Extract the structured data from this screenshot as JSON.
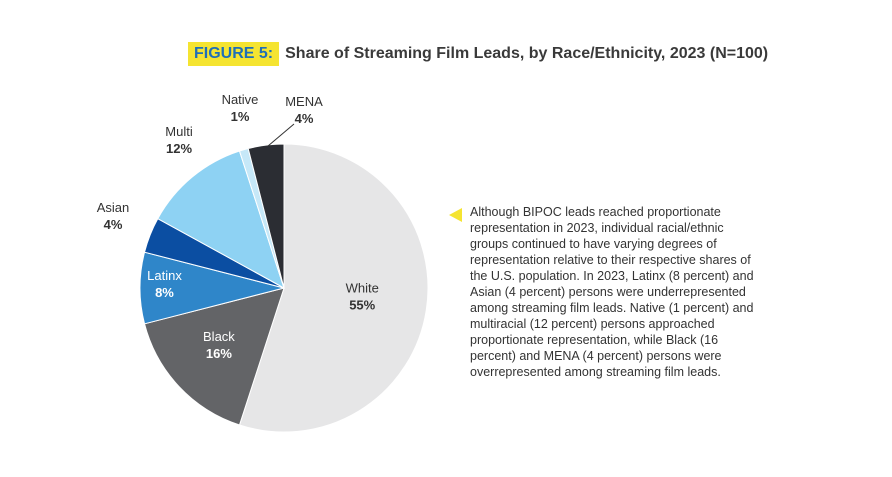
{
  "header": {
    "figure_tag": "FIGURE 5:",
    "title": "Share of Streaming Film Leads, by Race/Ethnicity, 2023 (N=100)"
  },
  "colors": {
    "accent_yellow": "#f5e431",
    "accent_blue": "#1f6fb8"
  },
  "chart_data": {
    "type": "pie",
    "title": "Share of Streaming Film Leads, by Race/Ethnicity, 2023 (N=100)",
    "slices": [
      {
        "label": "White",
        "value": 55,
        "display": "55%",
        "color": "#e6e6e7",
        "text_color": "#333333"
      },
      {
        "label": "Black",
        "value": 16,
        "display": "16%",
        "color": "#636467",
        "text_color": "#ffffff"
      },
      {
        "label": "Latinx",
        "value": 8,
        "display": "8%",
        "color": "#2f86c9",
        "text_color": "#ffffff"
      },
      {
        "label": "Asian",
        "value": 4,
        "display": "4%",
        "color": "#0b4ea2",
        "text_color": "#333333"
      },
      {
        "label": "Multi",
        "value": 12,
        "display": "12%",
        "color": "#8ed2f3",
        "text_color": "#333333"
      },
      {
        "label": "Native",
        "value": 1,
        "display": "1%",
        "color": "#c6e8f8",
        "text_color": "#333333"
      },
      {
        "label": "MENA",
        "value": 4,
        "display": "4%",
        "color": "#2b2d33",
        "text_color": "#333333"
      }
    ]
  },
  "note": {
    "text": "Although BIPOC leads reached proportionate representation in 2023, individual racial/ethnic groups continued to have varying degrees of representation relative to their respective shares of the U.S. population. In 2023, Latinx (8 percent) and Asian (4 percent) persons were underrepresented among streaming film leads. Native (1 percent) and multiracial (12 percent) persons approached proportionate representation, while Black (16 percent) and MENA (4 percent) persons were overrepresented among streaming film leads."
  }
}
